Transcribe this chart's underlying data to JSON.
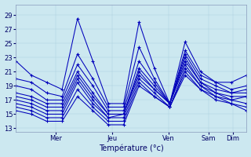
{
  "title": "Température (°c)",
  "background_color": "#cce8f0",
  "line_color": "#0000bb",
  "grid_color": "#aaccdd",
  "ylim": [
    12.5,
    30.5
  ],
  "yticks": [
    13,
    15,
    17,
    19,
    21,
    23,
    25,
    27,
    29
  ],
  "day_labels": [
    "Mer",
    "Jeu",
    "Ven",
    "Sam",
    "Dim"
  ],
  "day_tick_x": [
    20,
    48,
    76,
    96,
    108
  ],
  "xlim": [
    0,
    115
  ],
  "series": [
    [
      22.5,
      20.5,
      19.5,
      18.5,
      28.5,
      22.5,
      16.5,
      16.5,
      28.0,
      21.5,
      16.5,
      25.2,
      21.0,
      19.5,
      19.5,
      20.5
    ],
    [
      20.0,
      19.5,
      18.0,
      17.5,
      23.5,
      20.0,
      16.0,
      16.0,
      24.5,
      20.0,
      16.5,
      24.0,
      20.5,
      19.5,
      18.5,
      19.0
    ],
    [
      19.0,
      18.5,
      17.0,
      17.0,
      22.0,
      19.0,
      15.5,
      15.5,
      22.5,
      19.5,
      16.5,
      23.5,
      20.0,
      19.0,
      18.0,
      18.5
    ],
    [
      18.0,
      17.5,
      16.5,
      16.5,
      21.0,
      18.0,
      15.0,
      15.0,
      21.5,
      19.0,
      16.5,
      23.0,
      19.5,
      18.5,
      18.0,
      18.0
    ],
    [
      17.5,
      17.0,
      16.0,
      16.0,
      20.5,
      17.5,
      15.0,
      15.0,
      21.0,
      18.5,
      16.5,
      22.5,
      19.5,
      18.0,
      17.5,
      17.5
    ],
    [
      17.0,
      16.5,
      15.5,
      15.5,
      20.0,
      17.0,
      14.5,
      15.0,
      20.5,
      18.5,
      16.5,
      22.0,
      19.0,
      18.0,
      17.0,
      17.5
    ],
    [
      16.5,
      16.0,
      15.0,
      15.0,
      19.5,
      16.5,
      14.5,
      14.5,
      20.0,
      18.0,
      16.0,
      21.5,
      19.0,
      17.5,
      17.0,
      16.5
    ],
    [
      16.0,
      15.5,
      14.5,
      14.5,
      18.5,
      16.0,
      14.0,
      14.0,
      19.5,
      17.5,
      16.0,
      21.0,
      18.5,
      17.5,
      16.5,
      16.0
    ],
    [
      15.5,
      15.0,
      14.0,
      14.0,
      17.5,
      15.5,
      13.5,
      13.5,
      19.0,
      17.5,
      16.0,
      20.5,
      18.5,
      17.0,
      16.5,
      15.5
    ]
  ],
  "n_points": 16
}
